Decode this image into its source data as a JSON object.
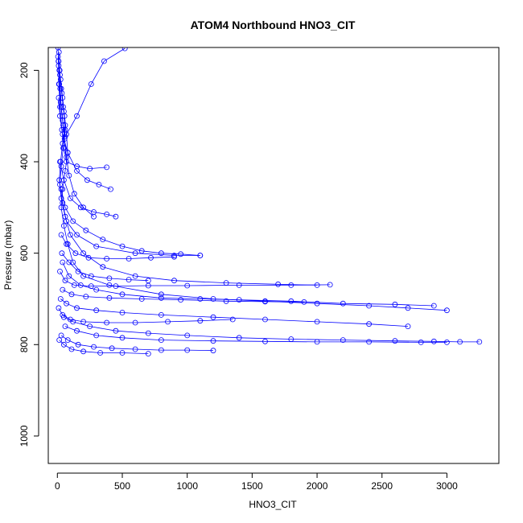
{
  "chart_data": {
    "type": "scatter",
    "title": "ATOM4 Northbound HNO3_CIT",
    "xlabel": "HNO3_CIT",
    "ylabel": "Pressure (mbar)",
    "xlim": [
      -70,
      3400
    ],
    "ylim": [
      1060,
      150
    ],
    "y_reversed": true,
    "x_ticks": [
      "0",
      "500",
      "1000",
      "1500",
      "2000",
      "2500",
      "3000"
    ],
    "y_ticks": [
      "200",
      "400",
      "600",
      "800",
      "1000"
    ],
    "series_color": "#0000ff",
    "marker": "open-circle",
    "connected": true,
    "series": [
      {
        "profiles": [
          [
            [
              10,
              180
            ],
            [
              25,
              220
            ],
            [
              40,
              260
            ],
            [
              55,
              300
            ],
            [
              70,
              340
            ],
            [
              80,
              380
            ],
            [
              60,
              420
            ],
            [
              40,
              460
            ],
            [
              30,
              500
            ],
            [
              50,
              540
            ],
            [
              80,
              580
            ],
            [
              120,
              620
            ],
            [
              200,
              650
            ],
            [
              400,
              670
            ],
            [
              800,
              690
            ],
            [
              1200,
              700
            ],
            [
              1600,
              705
            ],
            [
              2000,
              710
            ],
            [
              2400,
              715
            ],
            [
              2700,
              720
            ],
            [
              3000,
              725
            ]
          ],
          [
            [
              5,
              170
            ],
            [
              20,
              210
            ],
            [
              35,
              250
            ],
            [
              50,
              290
            ],
            [
              60,
              330
            ],
            [
              45,
              370
            ],
            [
              30,
              410
            ],
            [
              20,
              450
            ],
            [
              40,
              490
            ],
            [
              70,
              530
            ],
            [
              150,
              560
            ],
            [
              300,
              585
            ],
            [
              600,
              600
            ],
            [
              900,
              605
            ],
            [
              1100,
              605
            ]
          ],
          [
            [
              15,
              200
            ],
            [
              30,
              240
            ],
            [
              45,
              280
            ],
            [
              60,
              320
            ],
            [
              40,
              360
            ],
            [
              25,
              400
            ],
            [
              15,
              440
            ],
            [
              30,
              480
            ],
            [
              60,
              520
            ],
            [
              100,
              560
            ],
            [
              200,
              600
            ],
            [
              350,
              630
            ],
            [
              600,
              650
            ],
            [
              900,
              660
            ],
            [
              1300,
              665
            ],
            [
              1700,
              668
            ],
            [
              2000,
              670
            ]
          ],
          [
            [
              8,
              180
            ],
            [
              12,
              230
            ],
            [
              20,
              280
            ],
            [
              35,
              330
            ],
            [
              50,
              370
            ],
            [
              70,
              400
            ],
            [
              150,
              410
            ],
            [
              250,
              415
            ],
            [
              380,
              412
            ]
          ],
          [
            [
              10,
              260
            ],
            [
              20,
              300
            ],
            [
              40,
              340
            ],
            [
              80,
              380
            ],
            [
              150,
              420
            ],
            [
              230,
              440
            ],
            [
              320,
              450
            ],
            [
              410,
              460
            ]
          ],
          [
            [
              20,
              400
            ],
            [
              50,
              440
            ],
            [
              100,
              480
            ],
            [
              180,
              500
            ],
            [
              280,
              510
            ],
            [
              380,
              515
            ],
            [
              450,
              520
            ]
          ],
          [
            [
              30,
              460
            ],
            [
              60,
              500
            ],
            [
              120,
              530
            ],
            [
              220,
              550
            ],
            [
              350,
              570
            ],
            [
              500,
              585
            ],
            [
              650,
              595
            ],
            [
              800,
              600
            ],
            [
              950,
              602
            ],
            [
              1100,
              605
            ]
          ],
          [
            [
              40,
              620
            ],
            [
              90,
              650
            ],
            [
              180,
              670
            ],
            [
              300,
              680
            ],
            [
              500,
              690
            ],
            [
              800,
              698
            ],
            [
              1100,
              700
            ],
            [
              1400,
              702
            ],
            [
              1800,
              705
            ],
            [
              2200,
              710
            ],
            [
              2600,
              712
            ],
            [
              2900,
              715
            ]
          ],
          [
            [
              25,
              700
            ],
            [
              70,
              710
            ],
            [
              150,
              720
            ],
            [
              300,
              725
            ],
            [
              500,
              730
            ],
            [
              800,
              735
            ],
            [
              1200,
              740
            ],
            [
              1600,
              745
            ],
            [
              2000,
              750
            ],
            [
              2400,
              755
            ],
            [
              2700,
              760
            ]
          ],
          [
            [
              50,
              740
            ],
            [
              120,
              750
            ],
            [
              250,
              760
            ],
            [
              450,
              770
            ],
            [
              700,
              775
            ],
            [
              1000,
              780
            ],
            [
              1400,
              785
            ],
            [
              1800,
              788
            ],
            [
              2200,
              790
            ],
            [
              2600,
              792
            ],
            [
              2900,
              793
            ],
            [
              3100,
              794
            ],
            [
              3250,
              794
            ]
          ],
          [
            [
              60,
              760
            ],
            [
              150,
              770
            ],
            [
              300,
              780
            ],
            [
              500,
              785
            ],
            [
              800,
              790
            ],
            [
              1200,
              792
            ],
            [
              1600,
              793
            ],
            [
              2000,
              794
            ],
            [
              2400,
              794
            ],
            [
              2800,
              795
            ],
            [
              3000,
              795
            ]
          ],
          [
            [
              30,
              780
            ],
            [
              80,
              790
            ],
            [
              160,
              800
            ],
            [
              280,
              805
            ],
            [
              420,
              808
            ],
            [
              600,
              810
            ],
            [
              800,
              812
            ],
            [
              1000,
              812
            ],
            [
              1200,
              813
            ]
          ],
          [
            [
              15,
              790
            ],
            [
              50,
              800
            ],
            [
              110,
              810
            ],
            [
              200,
              815
            ],
            [
              330,
              818
            ],
            [
              500,
              818
            ],
            [
              700,
              820
            ]
          ],
          [
            [
              20,
              640
            ],
            [
              60,
              660
            ],
            [
              130,
              670
            ],
            [
              260,
              672
            ],
            [
              450,
              672
            ],
            [
              700,
              671
            ],
            [
              1000,
              671
            ],
            [
              1400,
              670
            ],
            [
              1800,
              670
            ],
            [
              2100,
              669
            ]
          ],
          [
            [
              10,
              720
            ],
            [
              40,
              735
            ],
            [
              100,
              745
            ],
            [
              200,
              750
            ],
            [
              380,
              752
            ],
            [
              600,
              752
            ],
            [
              850,
              750
            ],
            [
              1100,
              748
            ],
            [
              1350,
              745
            ]
          ],
          [
            [
              12,
              160
            ],
            [
              18,
              200
            ],
            [
              22,
              240
            ],
            [
              30,
              280
            ],
            [
              45,
              320
            ],
            [
              60,
              345
            ],
            [
              150,
              300
            ],
            [
              260,
              230
            ],
            [
              360,
              180
            ],
            [
              520,
              152
            ]
          ],
          [
            [
              5,
              150
            ],
            [
              10,
              190
            ],
            [
              15,
              230
            ],
            [
              25,
              270
            ],
            [
              40,
              310
            ],
            [
              55,
              350
            ],
            [
              70,
              390
            ],
            [
              90,
              430
            ],
            [
              130,
              470
            ],
            [
              200,
              500
            ],
            [
              280,
              520
            ]
          ],
          [
            [
              30,
              560
            ],
            [
              70,
              580
            ],
            [
              140,
              600
            ],
            [
              240,
              610
            ],
            [
              380,
              612
            ],
            [
              550,
              612
            ],
            [
              720,
              610
            ],
            [
              900,
              608
            ]
          ],
          [
            [
              40,
              680
            ],
            [
              110,
              690
            ],
            [
              220,
              695
            ],
            [
              400,
              698
            ],
            [
              650,
              700
            ],
            [
              950,
              702
            ],
            [
              1300,
              705
            ],
            [
              1600,
              706
            ],
            [
              1900,
              707
            ]
          ],
          [
            [
              35,
              600
            ],
            [
              90,
              620
            ],
            [
              160,
              640
            ],
            [
              260,
              650
            ],
            [
              400,
              655
            ],
            [
              550,
              658
            ],
            [
              700,
              660
            ]
          ]
        ]
      }
    ]
  }
}
